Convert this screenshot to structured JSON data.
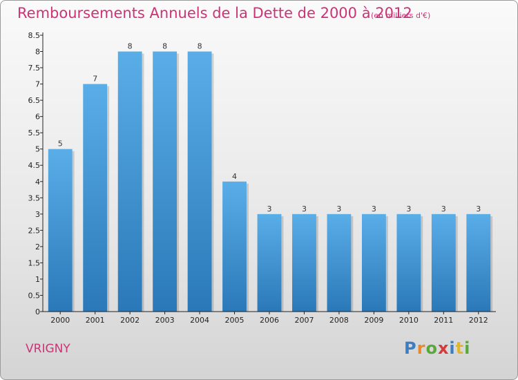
{
  "header": {
    "title": "Remboursements Annuels de la Dette de 2000 à 2012",
    "unit": "(en milliers d'€)"
  },
  "footer": {
    "commune": "VRIGNY",
    "brand": "Proxiti",
    "brand_letters": [
      {
        "ch": "P",
        "color": "#3b7ec4"
      },
      {
        "ch": "r",
        "color": "#e9882b"
      },
      {
        "ch": "o",
        "color": "#58a83a"
      },
      {
        "ch": "x",
        "color": "#d4393b"
      },
      {
        "ch": "i",
        "color": "#3b7ec4"
      },
      {
        "ch": "t",
        "color": "#e2b62a"
      },
      {
        "ch": "i",
        "color": "#58a83a"
      }
    ]
  },
  "colors": {
    "title": "#cc3377",
    "bar_top": "#5aaee8",
    "bar_bottom": "#2a78b8"
  },
  "chart_data": {
    "type": "bar",
    "title": "Remboursements Annuels de la Dette de 2000 à 2012",
    "categories": [
      "2000",
      "2001",
      "2002",
      "2003",
      "2004",
      "2005",
      "2006",
      "2007",
      "2008",
      "2009",
      "2010",
      "2011",
      "2012"
    ],
    "values": [
      5,
      7,
      8,
      8,
      8,
      4,
      3,
      3,
      3,
      3,
      3,
      3,
      3
    ],
    "data_labels": [
      "5",
      "7",
      "8",
      "8",
      "8",
      "4",
      "3",
      "3",
      "3",
      "3",
      "3",
      "3",
      "3"
    ],
    "ylim": [
      0,
      8.5
    ],
    "yticks": [
      "0",
      "0.5",
      "1",
      "1.5",
      "2",
      "2.5",
      "3",
      "3.5",
      "4",
      "4.5",
      "5",
      "5.5",
      "6",
      "6.5",
      "7",
      "7.5",
      "8",
      "8.5"
    ],
    "ytick_values": [
      0,
      0.5,
      1,
      1.5,
      2,
      2.5,
      3,
      3.5,
      4,
      4.5,
      5,
      5.5,
      6,
      6.5,
      7,
      7.5,
      8,
      8.5
    ],
    "grid": false,
    "legend": "none"
  }
}
